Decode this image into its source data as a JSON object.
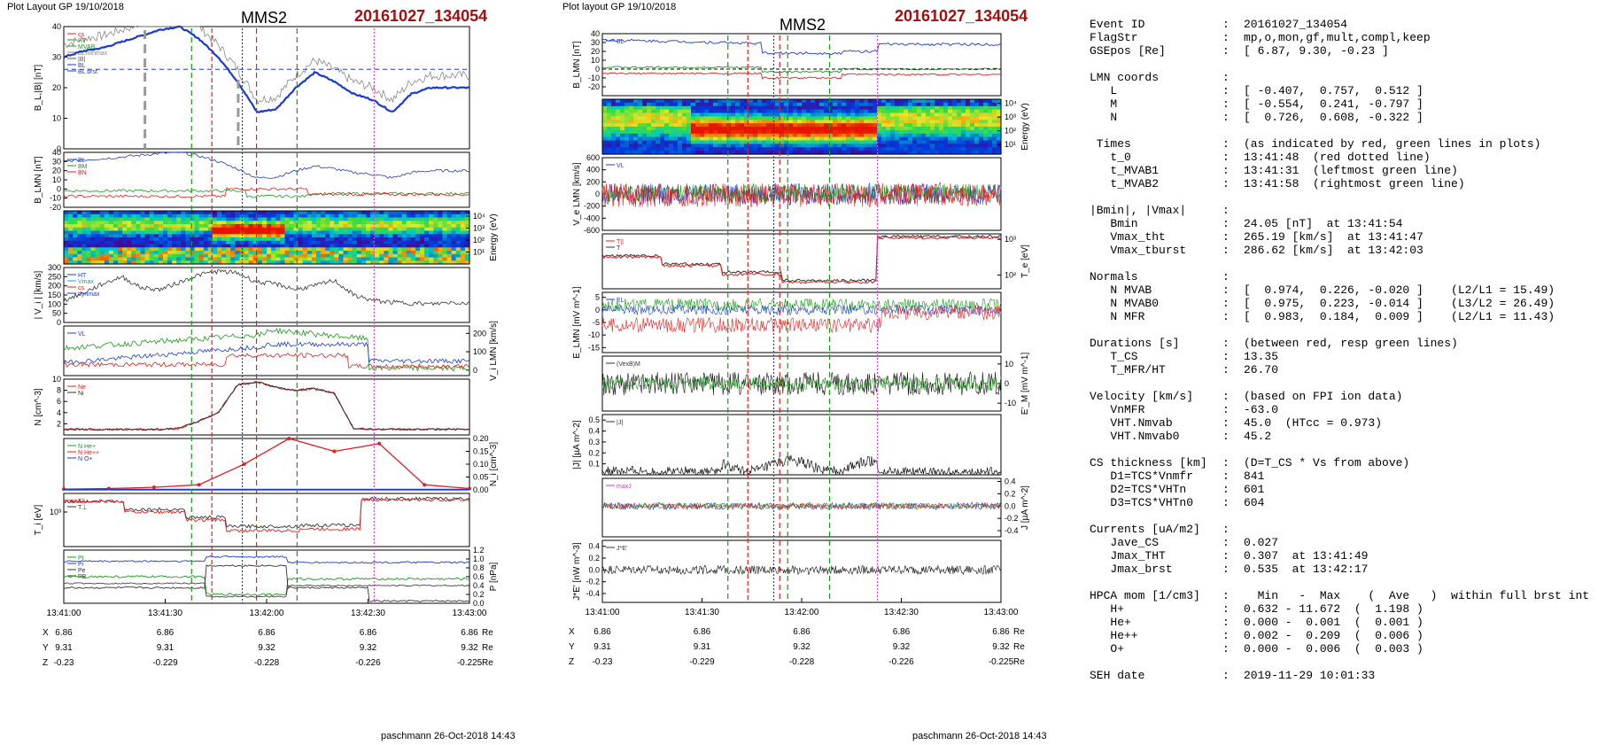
{
  "left": {
    "layout_label": "Plot Layout GP 19/10/2018",
    "spacecraft": "MMS2",
    "event": "20161027_134054",
    "footer": "paschmann 26-Oct-2018 14:43",
    "time_ticks": [
      "13:41:00",
      "13:41:30",
      "13:42:00",
      "13:42:30",
      "13:43:00"
    ],
    "pos_rows": [
      {
        "label": "X",
        "vals": [
          "6.86",
          "6.86",
          "6.86",
          "6.86",
          "6.86"
        ],
        "unit": "Re"
      },
      {
        "label": "Y",
        "vals": [
          "9.31",
          "9.31",
          "9.32",
          "9.32",
          "9.32"
        ],
        "unit": "Re"
      },
      {
        "label": "Z",
        "vals": [
          "-0.23",
          "-0.229",
          "-0.228",
          "-0.226",
          "-0.225"
        ],
        "unit": "Re"
      }
    ]
  },
  "middle": {
    "layout_label": "Plot layout GP 19/10/2018",
    "spacecraft": "MMS2",
    "event": "20161027_134054",
    "footer": "paschmann 26-Oct-2018 14:43",
    "time_ticks": [
      "13:41:00",
      "13:41:30",
      "13:42:00",
      "13:42:30",
      "13:43:00"
    ],
    "pos_rows": [
      {
        "label": "X",
        "vals": [
          "6.86",
          "6.86",
          "6.86",
          "6.86",
          "6.86"
        ],
        "unit": "Re"
      },
      {
        "label": "Y",
        "vals": [
          "9.31",
          "9.31",
          "9.32",
          "9.32",
          "9.32"
        ],
        "unit": "Re"
      },
      {
        "label": "Z",
        "vals": [
          "-0.23",
          "-0.229",
          "-0.228",
          "-0.226",
          "-0.225"
        ],
        "unit": "Re"
      }
    ]
  },
  "chart_data": [
    {
      "type": "line",
      "panel": "B_L,|B|",
      "ylabel": "B_L,|B| [nT]",
      "ylim": [
        0,
        40
      ],
      "yticks": [
        0,
        10,
        20,
        30,
        40
      ],
      "legend": [
        "cs",
        "HT",
        "MVAB",
        "BLminmax",
        "|B|",
        "BL",
        "BL brst"
      ],
      "series": [
        {
          "name": "BL brst",
          "values": [
            30,
            32,
            33,
            35,
            37,
            39,
            40,
            36,
            30,
            22,
            12,
            13,
            20,
            25,
            22,
            18,
            16,
            12,
            18,
            20,
            20,
            20
          ]
        }
      ]
    },
    {
      "type": "line",
      "panel": "B_LMN",
      "ylabel": "B_LMN [nT]",
      "ylim": [
        -20,
        40
      ],
      "yticks": [
        -20,
        -10,
        0,
        10,
        20,
        30,
        40
      ],
      "legend": [
        "BL",
        "BM",
        "BN"
      ]
    },
    {
      "type": "heatmap",
      "panel": "ion energy",
      "ylabel": "Energy (eV)",
      "yticks": [
        "10^4",
        "10^3",
        "10^2",
        "10^1"
      ]
    },
    {
      "type": "line",
      "panel": "|Vi|",
      "ylabel": "| V_i | [km/s]",
      "ylim": [
        0,
        300
      ],
      "yticks": [
        0,
        50,
        100,
        150,
        200,
        250,
        300
      ],
      "legend": [
        "HT",
        "Vmax",
        "cs",
        "dynmax"
      ],
      "series": [
        {
          "name": "|Vi|",
          "values": [
            120,
            160,
            210,
            250,
            190,
            180,
            220,
            260,
            280,
            270,
            220,
            210,
            180,
            200,
            230,
            150,
            120,
            110,
            105,
            100,
            110,
            105
          ]
        }
      ]
    },
    {
      "type": "line",
      "panel": "Vi LMN",
      "ylabel": "V_i LMN [km/s]",
      "ylim": [
        0,
        200
      ],
      "yticks": [
        0,
        100,
        200
      ],
      "legend": [
        "VL",
        "VM",
        "VN"
      ]
    },
    {
      "type": "line",
      "panel": "N",
      "ylabel": "N [cm^-3]",
      "ylim": [
        0,
        10
      ],
      "yticks": [
        2,
        4,
        6,
        8,
        10
      ],
      "legend": [
        "Ne",
        "Ni"
      ],
      "series": [
        {
          "name": "Ni",
          "values": [
            1,
            1,
            1,
            1,
            1,
            1,
            1.2,
            2.5,
            4,
            9,
            9.5,
            8.5,
            8,
            8.3,
            7.5,
            1.2,
            1,
            1,
            1,
            1,
            1,
            1
          ]
        }
      ]
    },
    {
      "type": "line",
      "panel": "N HPCA",
      "ylabel": "N_i [cm^-3]",
      "ylim": [
        0,
        0.2
      ],
      "yticks": [
        0,
        0.05,
        0.1,
        0.15,
        0.2
      ],
      "legend": [
        "N He+",
        "N He++",
        "N O+"
      ],
      "series": [
        {
          "name": "N He++",
          "values": [
            0.003,
            0.005,
            0.01,
            0.02,
            0.1,
            0.2,
            0.15,
            0.18,
            0.02,
            0.005
          ]
        }
      ]
    },
    {
      "type": "line",
      "panel": "Ti",
      "ylabel": "T_i [eV]",
      "yticks": [
        "10^3"
      ],
      "legend": [
        "T||",
        "T⊥"
      ]
    },
    {
      "type": "line",
      "panel": "P",
      "ylabel": "P [nPa]",
      "ylim": [
        0,
        1.2
      ],
      "yticks": [
        0,
        0.2,
        0.4,
        0.6,
        0.8,
        1,
        1.2
      ],
      "legend": [
        "Pt",
        "Pi",
        "Pe",
        "PB"
      ]
    },
    {
      "type": "line",
      "panel": "B_LMN mid",
      "ylabel": "B_LMN [nT]",
      "ylim": [
        -30,
        40
      ],
      "yticks": [
        -20,
        -10,
        0,
        10,
        20,
        30,
        40
      ],
      "legend": [
        "BL",
        "BM",
        "BN"
      ]
    },
    {
      "type": "heatmap",
      "panel": "electron energy",
      "ylabel": "Energy (eV)",
      "yticks": [
        "10^4",
        "10^3",
        "10^2",
        "10^1"
      ]
    },
    {
      "type": "line",
      "panel": "Ve LMN",
      "ylabel": "V_e LMN [km/s]",
      "ylim": [
        -600,
        600
      ],
      "yticks": [
        -600,
        -400,
        -200,
        0,
        200,
        400,
        600
      ],
      "legend": [
        "VL",
        "VM",
        "VN"
      ]
    },
    {
      "type": "line",
      "panel": "Te",
      "ylabel": "T_e [eV]",
      "yticks": [
        "10^3",
        "10^2"
      ],
      "legend": [
        "T||",
        "T⊥"
      ]
    },
    {
      "type": "line",
      "panel": "E LMN",
      "ylabel": "E_LMN [mV m^-1]",
      "ylim": [
        -15,
        5
      ],
      "yticks": [
        -15,
        -10,
        -5,
        0,
        5
      ],
      "legend": [
        "EL",
        "EM",
        "EN"
      ]
    },
    {
      "type": "line",
      "panel": "E'M",
      "ylabel": "E'_M [mV m^-1]",
      "ylim": [
        -10,
        10
      ],
      "yticks": [
        -10,
        0,
        10
      ],
      "legend": [
        "(VexB)M",
        "E'M"
      ]
    },
    {
      "type": "line",
      "panel": "|J|",
      "ylabel": "|J| [µA m^-2]",
      "ylim": [
        0,
        0.5
      ],
      "yticks": [
        0.1,
        0.2,
        0.3,
        0.4,
        0.5
      ],
      "legend": [
        "|J|"
      ]
    },
    {
      "type": "line",
      "panel": "J",
      "ylabel": "J [µA m^-2]",
      "ylim": [
        -0.4,
        0.4
      ],
      "yticks": [
        -0.4,
        -0.2,
        0,
        0.2,
        0.4
      ],
      "legend": [
        "maxJ",
        "JL",
        "JM",
        "JN"
      ]
    },
    {
      "type": "line",
      "panel": "J*E'",
      "ylabel": "J*E' [nW m^-3]",
      "ylim": [
        -0.4,
        0.4
      ],
      "yticks": [
        -0.4,
        -0.2,
        0,
        0.2,
        0.4
      ],
      "legend": [
        "J*E'"
      ]
    }
  ],
  "info": [
    {
      "k": "Event ID",
      "v": "20161027_134054"
    },
    {
      "k": "FlagStr",
      "v": "mp,o,mon,gf,mult,compl,keep"
    },
    {
      "k": "GSEpos [Re]",
      "v": "[ 6.87, 9.30, -0.23 ]"
    },
    {
      "gap": true
    },
    {
      "k": "LMN coords",
      "v": ""
    },
    {
      "k": "   L",
      "v": "[ -0.407,  0.757,  0.512 ]"
    },
    {
      "k": "   M",
      "v": "[ -0.554,  0.241, -0.797 ]"
    },
    {
      "k": "   N",
      "v": "[  0.726,  0.608, -0.322 ]"
    },
    {
      "gap": true
    },
    {
      "k": " Times",
      "v": "(as indicated by red, green lines in plots)"
    },
    {
      "k": "   t_0",
      "v": "13:41:48  (red dotted line)"
    },
    {
      "k": "   t_MVAB1",
      "v": "13:41:31  (leftmost green line)"
    },
    {
      "k": "   t_MVAB2",
      "v": "13:41:58  (rightmost green line)"
    },
    {
      "gap": true
    },
    {
      "k": "|Bmin|, |Vmax|",
      "v": ""
    },
    {
      "k": "   Bmin",
      "v": "24.05 [nT]  at 13:41:54"
    },
    {
      "k": "   Vmax_tht",
      "v": "265.19 [km/s]  at 13:41:47"
    },
    {
      "k": "   Vmax_tburst",
      "v": "286.62 [km/s]  at 13:42:03"
    },
    {
      "gap": true
    },
    {
      "k": "Normals",
      "v": ""
    },
    {
      "k": "   N MVAB",
      "v": "[  0.974,  0.226, -0.020 ]    (L2/L1 = 15.49)"
    },
    {
      "k": "   N MVAB0",
      "v": "[  0.975,  0.223, -0.014 ]    (L3/L2 = 26.49)"
    },
    {
      "k": "   N MFR",
      "v": "[  0.983,  0.184,  0.009 ]    (L2/L1 = 11.43)"
    },
    {
      "gap": true
    },
    {
      "k": "Durations [s]",
      "v": "(between red, resp green lines)"
    },
    {
      "k": "   T_CS",
      "v": "13.35"
    },
    {
      "k": "   T_MFR/HT",
      "v": "26.70"
    },
    {
      "gap": true
    },
    {
      "k": "Velocity [km/s]",
      "v": "(based on FPI ion data)"
    },
    {
      "k": "   VnMFR",
      "v": "-63.0"
    },
    {
      "k": "   VHT.Nmvab",
      "v": "45.0  (HTcc = 0.973)"
    },
    {
      "k": "   VHT.Nmvab0",
      "v": "45.2"
    },
    {
      "gap": true
    },
    {
      "k": "CS thickness [km]",
      "v": "(D=T_CS * Vs from above)"
    },
    {
      "k": "   D1=TCS*Vnmfr",
      "v": "841"
    },
    {
      "k": "   D2=TCS*VHTn",
      "v": "601"
    },
    {
      "k": "   D3=TCS*VHTn0",
      "v": "604"
    },
    {
      "gap": true
    },
    {
      "k": "Currents [uA/m2]",
      "v": ""
    },
    {
      "k": "   Jave_CS",
      "v": "0.027"
    },
    {
      "k": "   Jmax_THT",
      "v": "0.307  at 13:41:49"
    },
    {
      "k": "   Jmax_brst",
      "v": "0.535  at 13:42:17"
    },
    {
      "gap": true
    },
    {
      "k": "HPCA mom [1/cm3]",
      "v": "  Min   -  Max    (  Ave   )  within full brst int"
    },
    {
      "k": "   H+",
      "v": "0.632 - 11.672  (  1.198 )"
    },
    {
      "k": "   He+",
      "v": "0.000 -  0.001  (  0.001 )"
    },
    {
      "k": "   He++",
      "v": "0.002 -  0.209  (  0.006 )"
    },
    {
      "k": "   O+",
      "v": "0.000 -  0.006  (  0.003 )"
    },
    {
      "gap": true
    },
    {
      "k": "SEH date",
      "v": "2019-11-29 10:01:33"
    },
    {
      "gap": true
    }
  ]
}
